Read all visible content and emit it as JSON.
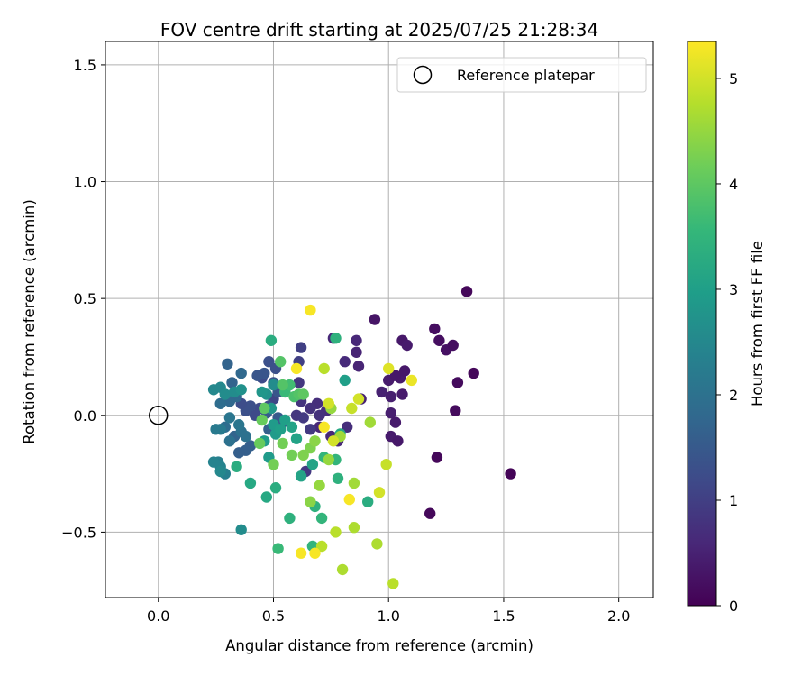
{
  "chart_data": {
    "type": "scatter",
    "title": "FOV centre drift starting at 2025/07/25 21:28:34",
    "xlabel": "Angular distance from reference (arcmin)",
    "ylabel": "Rotation from reference (arcmin)",
    "xlim": [
      -0.23,
      2.15
    ],
    "ylim": [
      -0.78,
      1.6
    ],
    "x_ticks": [
      0.0,
      0.5,
      1.0,
      1.5,
      2.0
    ],
    "x_tick_labels": [
      "0.0",
      "0.5",
      "1.0",
      "1.5",
      "2.0"
    ],
    "y_ticks": [
      -0.5,
      0.0,
      0.5,
      1.0,
      1.5
    ],
    "y_tick_labels": [
      "−0.5",
      "0.0",
      "0.5",
      "1.0",
      "1.5"
    ],
    "grid": true,
    "legend": {
      "placement": "top-right",
      "entries": [
        "Reference platepar"
      ]
    },
    "colorbar": {
      "label": "Hours from first FF file",
      "colormap": "viridis",
      "range": [
        0,
        5.35
      ],
      "ticks": [
        0,
        1,
        2,
        3,
        4,
        5
      ],
      "tick_labels": [
        "0",
        "1",
        "2",
        "3",
        "4",
        "5"
      ]
    },
    "reference_point": {
      "x": 0.0,
      "y": 0.0,
      "label": "Reference platepar"
    },
    "series": [
      {
        "points": [
          [
            1.34,
            0.53,
            0.1
          ],
          [
            1.53,
            -0.25,
            0.05
          ],
          [
            1.37,
            0.18,
            0.1
          ],
          [
            1.3,
            0.14,
            0.15
          ],
          [
            1.2,
            0.37,
            0.2
          ],
          [
            1.22,
            0.32,
            0.2
          ],
          [
            1.25,
            0.28,
            0.25
          ],
          [
            1.28,
            0.3,
            0.2
          ],
          [
            1.29,
            0.02,
            0.15
          ],
          [
            1.21,
            -0.18,
            0.1
          ],
          [
            1.18,
            -0.42,
            0.1
          ],
          [
            0.94,
            0.41,
            0.3
          ],
          [
            1.06,
            0.32,
            0.35
          ],
          [
            1.08,
            0.3,
            0.4
          ],
          [
            1.05,
            0.16,
            0.4
          ],
          [
            1.07,
            0.19,
            0.35
          ],
          [
            1.0,
            0.15,
            0.4
          ],
          [
            1.03,
            0.17,
            0.35
          ],
          [
            1.01,
            0.08,
            0.45
          ],
          [
            1.06,
            0.09,
            0.4
          ],
          [
            0.97,
            0.1,
            0.5
          ],
          [
            1.01,
            0.01,
            0.45
          ],
          [
            1.03,
            -0.03,
            0.4
          ],
          [
            1.01,
            -0.09,
            0.4
          ],
          [
            1.04,
            -0.11,
            0.35
          ],
          [
            0.88,
            0.07,
            0.5
          ],
          [
            0.87,
            0.21,
            0.55
          ],
          [
            0.86,
            0.27,
            0.55
          ],
          [
            0.86,
            0.32,
            0.6
          ],
          [
            0.76,
            0.33,
            0.6
          ],
          [
            0.81,
            0.23,
            0.65
          ],
          [
            0.82,
            -0.05,
            0.7
          ],
          [
            0.75,
            -0.09,
            0.6
          ],
          [
            0.78,
            -0.11,
            0.6
          ],
          [
            0.7,
            -0.05,
            0.6
          ],
          [
            0.69,
            0.05,
            0.7
          ],
          [
            0.73,
            0.02,
            0.7
          ],
          [
            0.7,
            0.0,
            0.75
          ],
          [
            0.66,
            0.03,
            0.75
          ],
          [
            0.62,
            0.06,
            0.8
          ],
          [
            0.61,
            0.14,
            0.85
          ],
          [
            0.6,
            0.0,
            0.85
          ],
          [
            0.63,
            -0.01,
            0.9
          ],
          [
            0.66,
            -0.06,
            0.9
          ],
          [
            0.62,
            0.29,
            1.0
          ],
          [
            0.64,
            -0.24,
            0.9
          ],
          [
            0.61,
            0.23,
            1.0
          ],
          [
            0.55,
            0.1,
            1.1
          ],
          [
            0.5,
            0.07,
            1.1
          ],
          [
            0.48,
            0.04,
            1.2
          ],
          [
            0.44,
            0.03,
            1.2
          ],
          [
            0.42,
            0.0,
            1.2
          ],
          [
            0.4,
            0.04,
            1.3
          ],
          [
            0.38,
            0.02,
            1.3
          ],
          [
            0.36,
            0.05,
            1.25
          ],
          [
            0.45,
            0.16,
            1.2
          ],
          [
            0.48,
            0.23,
            1.3
          ],
          [
            0.51,
            0.2,
            1.3
          ],
          [
            0.5,
            0.14,
            1.4
          ],
          [
            0.52,
            0.1,
            1.4
          ],
          [
            0.46,
            0.18,
            1.4
          ],
          [
            0.43,
            0.17,
            1.4
          ],
          [
            0.47,
            0.01,
            1.5
          ],
          [
            0.52,
            -0.01,
            1.5
          ],
          [
            0.5,
            -0.05,
            1.5
          ],
          [
            0.54,
            -0.03,
            1.5
          ],
          [
            0.48,
            -0.06,
            1.6
          ],
          [
            0.4,
            -0.13,
            1.6
          ],
          [
            0.38,
            -0.15,
            1.6
          ],
          [
            0.35,
            -0.16,
            1.6
          ],
          [
            0.33,
            -0.09,
            1.7
          ],
          [
            0.32,
            0.14,
            1.7
          ],
          [
            0.3,
            0.22,
            1.7
          ],
          [
            0.36,
            0.18,
            1.8
          ],
          [
            0.34,
            0.08,
            1.8
          ],
          [
            0.31,
            0.06,
            1.8
          ],
          [
            0.27,
            0.05,
            1.9
          ],
          [
            0.29,
            -0.05,
            1.9
          ],
          [
            0.31,
            -0.11,
            2.0
          ],
          [
            0.36,
            -0.07,
            2.0
          ],
          [
            0.38,
            -0.09,
            2.0
          ],
          [
            0.35,
            -0.04,
            2.1
          ],
          [
            0.31,
            -0.01,
            2.1
          ],
          [
            0.27,
            -0.06,
            2.2
          ],
          [
            0.25,
            -0.06,
            2.2
          ],
          [
            0.26,
            -0.2,
            2.3
          ],
          [
            0.29,
            -0.25,
            2.3
          ],
          [
            0.27,
            -0.22,
            2.4
          ],
          [
            0.24,
            -0.2,
            2.4
          ],
          [
            0.27,
            -0.24,
            2.5
          ],
          [
            0.24,
            0.11,
            2.5
          ],
          [
            0.27,
            0.12,
            2.5
          ],
          [
            0.29,
            0.09,
            2.6
          ],
          [
            0.33,
            0.1,
            2.6
          ],
          [
            0.36,
            0.11,
            2.7
          ],
          [
            0.36,
            -0.49,
            2.6
          ],
          [
            0.5,
            0.13,
            2.6
          ],
          [
            0.47,
            0.09,
            2.7
          ],
          [
            0.45,
            0.1,
            2.8
          ],
          [
            0.49,
            0.03,
            2.8
          ],
          [
            0.5,
            -0.04,
            2.9
          ],
          [
            0.51,
            -0.08,
            2.9
          ],
          [
            0.46,
            -0.11,
            2.9
          ],
          [
            0.48,
            -0.18,
            2.9
          ],
          [
            0.53,
            -0.06,
            3.0
          ],
          [
            0.55,
            -0.02,
            3.0
          ],
          [
            0.58,
            -0.05,
            3.1
          ],
          [
            0.6,
            -0.1,
            3.1
          ],
          [
            0.67,
            -0.21,
            3.1
          ],
          [
            0.62,
            -0.26,
            3.1
          ],
          [
            0.47,
            -0.35,
            3.2
          ],
          [
            0.4,
            -0.29,
            3.2
          ],
          [
            0.34,
            -0.22,
            3.3
          ],
          [
            0.51,
            -0.31,
            3.3
          ],
          [
            0.57,
            -0.44,
            3.4
          ],
          [
            0.68,
            -0.39,
            3.4
          ],
          [
            0.71,
            -0.44,
            3.5
          ],
          [
            0.67,
            -0.56,
            3.5
          ],
          [
            0.52,
            -0.57,
            3.6
          ],
          [
            0.91,
            -0.37,
            3.3
          ],
          [
            0.78,
            -0.27,
            3.4
          ],
          [
            0.72,
            -0.18,
            3.5
          ],
          [
            0.77,
            -0.19,
            3.5
          ],
          [
            0.79,
            -0.08,
            3.2
          ],
          [
            0.81,
            0.15,
            3.0
          ],
          [
            0.77,
            0.33,
            3.4
          ],
          [
            0.49,
            0.32,
            3.3
          ],
          [
            0.55,
            0.1,
            3.6
          ],
          [
            0.57,
            0.13,
            3.7
          ],
          [
            0.59,
            0.08,
            3.8
          ],
          [
            0.61,
            0.09,
            3.9
          ],
          [
            0.63,
            0.09,
            4.0
          ],
          [
            0.54,
            0.13,
            3.9
          ],
          [
            0.53,
            0.23,
            3.9
          ],
          [
            0.46,
            0.03,
            4.0
          ],
          [
            0.45,
            -0.02,
            4.1
          ],
          [
            0.44,
            -0.12,
            4.1
          ],
          [
            0.5,
            -0.21,
            4.2
          ],
          [
            0.54,
            -0.12,
            4.2
          ],
          [
            0.58,
            -0.17,
            4.2
          ],
          [
            0.63,
            -0.17,
            4.3
          ],
          [
            0.66,
            -0.14,
            4.3
          ],
          [
            0.68,
            -0.11,
            4.4
          ],
          [
            0.66,
            -0.37,
            4.4
          ],
          [
            0.7,
            -0.3,
            4.5
          ],
          [
            0.74,
            -0.19,
            4.5
          ],
          [
            0.75,
            0.03,
            4.5
          ],
          [
            0.79,
            -0.09,
            4.6
          ],
          [
            0.85,
            -0.29,
            4.6
          ],
          [
            0.85,
            -0.48,
            4.7
          ],
          [
            0.92,
            -0.03,
            4.6
          ],
          [
            0.95,
            -0.55,
            4.7
          ],
          [
            0.8,
            -0.66,
            4.7
          ],
          [
            0.77,
            -0.5,
            4.8
          ],
          [
            0.71,
            -0.56,
            4.8
          ],
          [
            1.02,
            -0.72,
            4.8
          ],
          [
            0.99,
            -0.21,
            4.9
          ],
          [
            0.96,
            -0.33,
            5.0
          ],
          [
            0.84,
            0.03,
            4.9
          ],
          [
            0.87,
            0.07,
            5.0
          ],
          [
            0.74,
            0.05,
            5.0
          ],
          [
            0.76,
            -0.11,
            5.0
          ],
          [
            0.72,
            0.2,
            4.8
          ],
          [
            1.0,
            0.2,
            5.1
          ],
          [
            1.1,
            0.15,
            5.2
          ],
          [
            0.6,
            0.2,
            5.3
          ],
          [
            0.66,
            0.45,
            5.3
          ],
          [
            0.72,
            -0.05,
            5.3
          ],
          [
            0.83,
            -0.36,
            5.3
          ],
          [
            0.68,
            -0.59,
            5.3
          ],
          [
            0.62,
            -0.59,
            5.3
          ]
        ]
      }
    ]
  }
}
